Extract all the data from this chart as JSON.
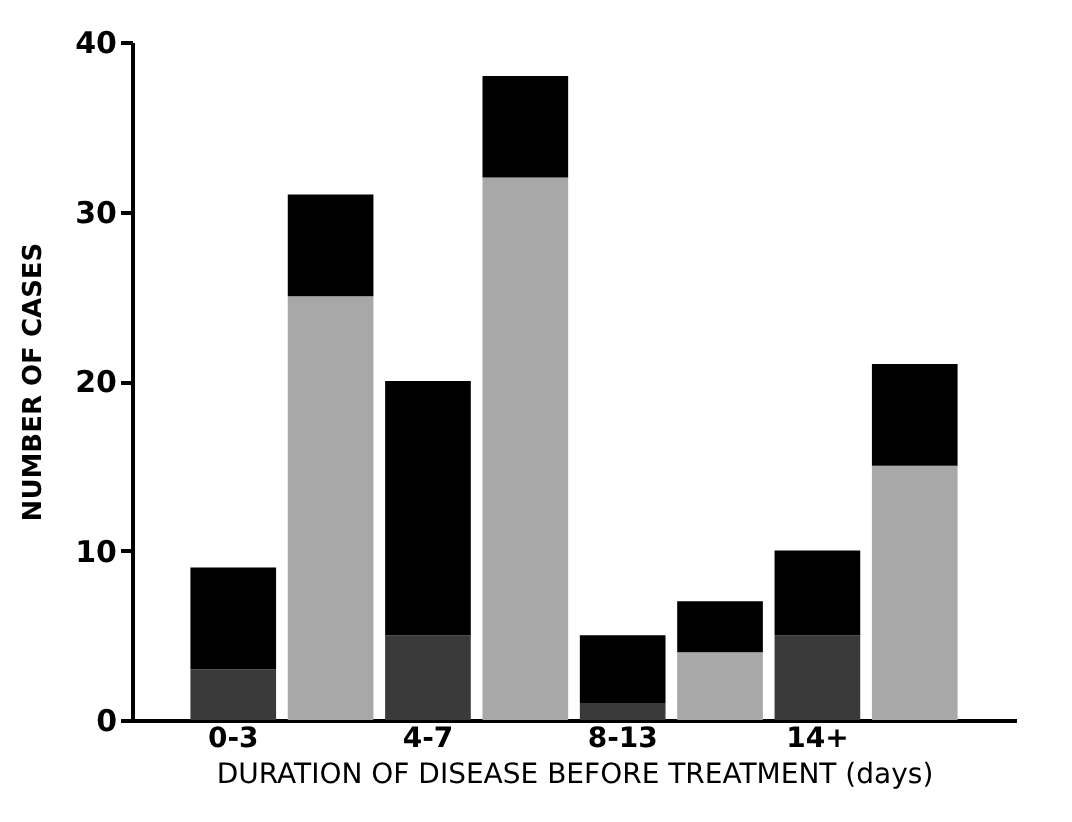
{
  "chart_data": {
    "type": "bar",
    "stacked": true,
    "xlabel": "DURATION OF DISEASE BEFORE TREATMENT (days)",
    "ylabel": "NUMBER OF CASES",
    "categories": [
      "0-3",
      null,
      "4-7",
      null,
      "8-13",
      null,
      "14+",
      null
    ],
    "series": [
      {
        "colors": [
          "#3a3a3a",
          "#a8a8a8",
          "#3a3a3a",
          "#a8a8a8",
          "#3a3a3a",
          "#a8a8a8",
          "#3a3a3a",
          "#a8a8a8"
        ],
        "values": [
          3,
          25,
          5,
          32,
          1,
          4,
          5,
          15
        ]
      },
      {
        "color": "#000000",
        "values": [
          6,
          6,
          15,
          6,
          4,
          3,
          5,
          6
        ]
      }
    ],
    "ylim": [
      0,
      40
    ],
    "yticks": [
      0,
      10,
      20,
      30,
      40
    ],
    "grid": false,
    "legend": false
  }
}
